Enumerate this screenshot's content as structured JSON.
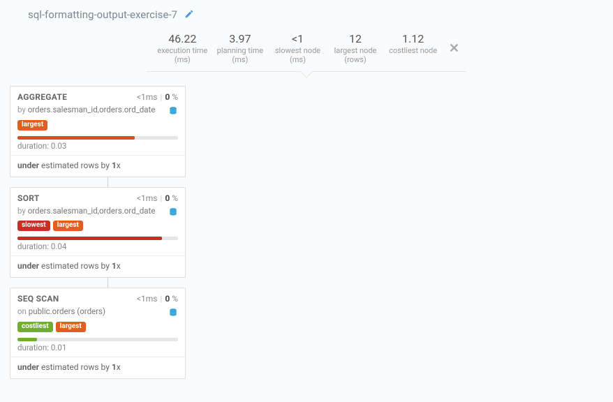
{
  "header": {
    "title": "sql-formatting-output-exercise-7"
  },
  "metrics": {
    "execution_time": {
      "value": "46.22",
      "label": "execution time (ms)"
    },
    "planning_time": {
      "value": "3.97",
      "label": "planning time (ms)"
    },
    "slowest_node": {
      "value": "<1",
      "label": "slowest node (ms)"
    },
    "largest_node": {
      "value": "12",
      "label": "largest node (rows)"
    },
    "costliest_node": {
      "value": "1.12",
      "label": "costliest node"
    }
  },
  "badge_labels": {
    "largest": "largest",
    "slowest": "slowest",
    "costliest": "costliest"
  },
  "colors": {
    "badge_largest": "#e25d20",
    "badge_slowest": "#c82f25",
    "badge_costliest": "#6fae2f",
    "bar_bg": "#e6e6e6"
  },
  "nodes": [
    {
      "title": "AGGREGATE",
      "time": "<1",
      "time_unit": "ms",
      "pct": "0",
      "sub_kw": "by",
      "sub_val": "orders.salesman_id,orders.ord_date",
      "badges": [
        "largest"
      ],
      "bar_color": "c-orange",
      "bar_width_pct": 73,
      "duration_label": "duration:",
      "duration_val": "0.03",
      "est_kw": "under",
      "est_mid": "estimated rows by",
      "est_factor": "1",
      "est_suffix": "x"
    },
    {
      "title": "SORT",
      "time": "<1",
      "time_unit": "ms",
      "pct": "0",
      "sub_kw": "by",
      "sub_val": "orders.salesman_id,orders.ord_date",
      "badges": [
        "slowest",
        "largest"
      ],
      "bar_color": "c-red",
      "bar_width_pct": 90,
      "duration_label": "duration:",
      "duration_val": "0.04",
      "est_kw": "under",
      "est_mid": "estimated rows by",
      "est_factor": "1",
      "est_suffix": "x"
    },
    {
      "title": "SEQ SCAN",
      "time": "<1",
      "time_unit": "ms",
      "pct": "0",
      "sub_kw": "on",
      "sub_val": "public.orders (orders)",
      "badges": [
        "costliest",
        "largest"
      ],
      "bar_color": "c-green",
      "bar_width_pct": 12,
      "duration_label": "duration:",
      "duration_val": "0.01",
      "est_kw": "under",
      "est_mid": "estimated rows by",
      "est_factor": "1",
      "est_suffix": "x"
    }
  ]
}
